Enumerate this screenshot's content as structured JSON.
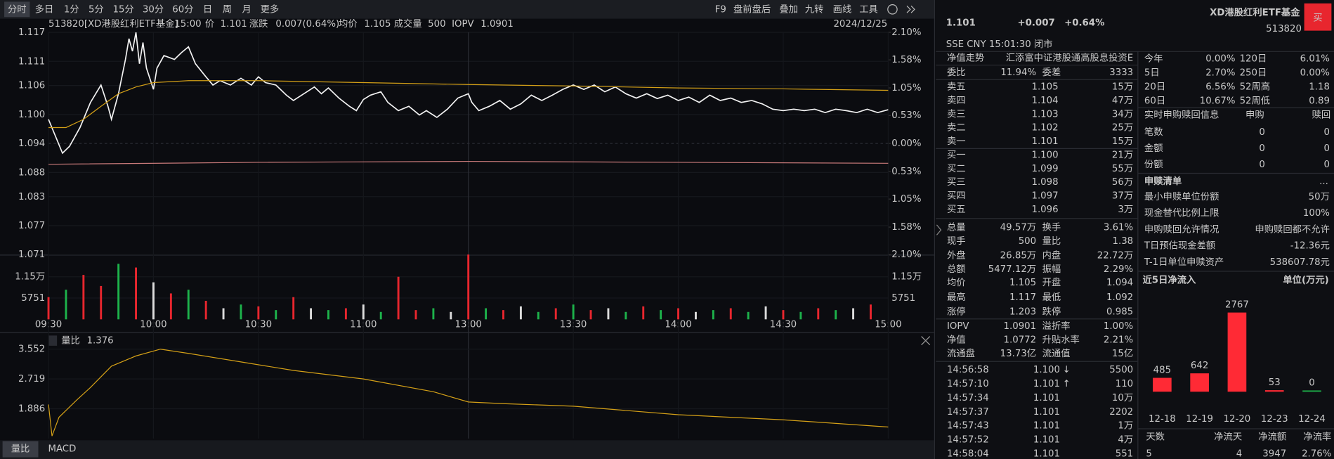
{
  "toolbar": {
    "periods": [
      "分时",
      "多日",
      "1分",
      "5分",
      "15分",
      "30分",
      "60分",
      "日",
      "周",
      "月",
      "更多"
    ],
    "tools": [
      "F9",
      "盘前盘后",
      "叠加",
      "九转",
      "画线",
      "工具"
    ]
  },
  "intraday": {
    "type": "line",
    "info": {
      "code_name": "513820[XD港股红利ETF基金]",
      "time": "15:00",
      "price_label": "价",
      "price": "1.101",
      "change_label": "涨跌",
      "change": "0.007(0.64%)",
      "avg_label": "均价",
      "avg": "1.105",
      "volume_label": "成交量",
      "volume": "500",
      "iopv_label": "IOPV",
      "iopv": "1.0901",
      "date": "2024/12/25"
    },
    "xlim": [
      0,
      240
    ],
    "xticks": [
      {
        "value": 0,
        "label": "09:30"
      },
      {
        "value": 30,
        "label": "10:00"
      },
      {
        "value": 60,
        "label": "10:30"
      },
      {
        "value": 90,
        "label": "11:00"
      },
      {
        "value": 120,
        "label": "13:00"
      },
      {
        "value": 150,
        "label": "13:30"
      },
      {
        "value": 180,
        "label": "14:00"
      },
      {
        "value": 210,
        "label": "14:30"
      },
      {
        "value": 240,
        "label": "15:00"
      }
    ],
    "ylim": [
      1.071,
      1.117
    ],
    "yticks": [
      1.117,
      1.111,
      1.106,
      {
        "value": 1.1,
        "label": "1.100"
      },
      1.094,
      1.088,
      1.083,
      1.077,
      1.071
    ],
    "y2lim": [
      -2.1,
      2.1
    ],
    "y2ticks": [
      {
        "value": 2.1,
        "label": "2.10%"
      },
      {
        "value": 1.58,
        "label": "1.58%"
      },
      {
        "value": 1.05,
        "label": "1.05%"
      },
      {
        "value": 0.53,
        "label": "0.53%"
      },
      {
        "value": 0,
        "label": "0.00%"
      },
      {
        "value": -0.53,
        "label": "0.53%"
      },
      {
        "value": -1.05,
        "label": "1.05%"
      },
      {
        "value": -1.58,
        "label": "1.58%"
      },
      {
        "value": -2.1,
        "label": "2.10%"
      }
    ],
    "grid": true,
    "series": [
      {
        "color": "#f2f2f2",
        "x": [
          0,
          2,
          4,
          6,
          9,
          12,
          15,
          17,
          18,
          20,
          22,
          23,
          24,
          25,
          26,
          27,
          28,
          30,
          31,
          33,
          36,
          38,
          40,
          42,
          45,
          47,
          49,
          52,
          55,
          58,
          60,
          62,
          65,
          68,
          70,
          73,
          76,
          78,
          80,
          83,
          86,
          88,
          90,
          92,
          95,
          97,
          100,
          103,
          106,
          108,
          111,
          114,
          117,
          120,
          121,
          123,
          126,
          129,
          132,
          135,
          138,
          141,
          144,
          147,
          150,
          153,
          156,
          159,
          162,
          165,
          168,
          171,
          174,
          177,
          180,
          183,
          186,
          189,
          192,
          195,
          198,
          201,
          204,
          207,
          210,
          213,
          216,
          219,
          222,
          225,
          228,
          231,
          234,
          237,
          240
        ],
        "values": [
          1.099,
          1.0955,
          1.092,
          1.0934,
          1.0973,
          1.1025,
          1.1061,
          1.1017,
          1.099,
          1.1043,
          1.1114,
          1.1157,
          1.1131,
          1.117,
          1.1105,
          1.1149,
          1.1096,
          1.1052,
          1.1096,
          1.1122,
          1.1114,
          1.1128,
          1.114,
          1.1105,
          1.1078,
          1.1061,
          1.107,
          1.1061,
          1.1075,
          1.1061,
          1.1078,
          1.1066,
          1.1061,
          1.104,
          1.1029,
          1.1043,
          1.1057,
          1.1043,
          1.1055,
          1.1034,
          1.1017,
          1.1008,
          1.1031,
          1.104,
          1.1047,
          1.1025,
          1.1008,
          1.1017,
          1.0999,
          1.1008,
          1.0994,
          1.1011,
          1.1034,
          1.1043,
          1.1025,
          1.1008,
          1.1017,
          1.1029,
          1.1011,
          1.1022,
          1.104,
          1.1029,
          1.104,
          1.1052,
          1.1061,
          1.1052,
          1.1061,
          1.1047,
          1.1057,
          1.1043,
          1.1034,
          1.1043,
          1.1033,
          1.104,
          1.1029,
          1.1036,
          1.1025,
          1.104,
          1.1029,
          1.1034,
          1.1025,
          1.1029,
          1.1022,
          1.1011,
          1.1008,
          1.1011,
          1.1008,
          1.1011,
          1.1004,
          1.1011,
          1.1008,
          1.1004,
          1.1011,
          1.1004,
          1.101
        ]
      },
      {
        "color": "#d4a017",
        "x": [
          0,
          5,
          10,
          15,
          20,
          25,
          30,
          40,
          60,
          90,
          120,
          150,
          180,
          210,
          240
        ],
        "values": [
          1.0973,
          1.0973,
          1.099,
          1.1017,
          1.1043,
          1.1057,
          1.1066,
          1.107,
          1.107,
          1.1066,
          1.1062,
          1.1059,
          1.1055,
          1.1053,
          1.105
        ]
      },
      {
        "color": "#c97a7a",
        "x": [
          0,
          60,
          120,
          180,
          240
        ],
        "values": [
          1.0897,
          1.0901,
          1.0903,
          1.0901,
          1.0899
        ]
      }
    ]
  },
  "volume": {
    "type": "bar",
    "ylim": [
      0,
      17250
    ],
    "yticks": [
      {
        "value": 11502,
        "label": "1.15万"
      },
      5751
    ],
    "x": [
      0,
      5,
      10,
      15,
      20,
      25,
      30,
      35,
      40,
      45,
      50,
      55,
      60,
      65,
      70,
      75,
      80,
      85,
      90,
      95,
      100,
      105,
      110,
      115,
      120,
      125,
      130,
      135,
      140,
      145,
      150,
      155,
      160,
      165,
      170,
      175,
      180,
      185,
      190,
      195,
      200,
      205,
      210,
      215,
      220,
      225,
      230,
      235
    ],
    "values": [
      6000,
      8000,
      12000,
      9000,
      15000,
      14000,
      10000,
      7000,
      8000,
      5000,
      3000,
      4000,
      3500,
      2500,
      6000,
      3000,
      2500,
      3000,
      4000,
      2000,
      11500,
      2500,
      3000,
      2000,
      17500,
      3000,
      2500,
      3500,
      2000,
      3000,
      4000,
      2500,
      3000,
      2000,
      3500,
      2500,
      3000,
      2000,
      2500,
      3000,
      2000,
      3500,
      2500,
      2000,
      3000,
      2500,
      3000,
      4000
    ],
    "colors": [
      "#e8262e",
      "#1db34b",
      "#e8262e",
      "#e8262e",
      "#1db34b",
      "#e8262e",
      "#dcdcdc",
      "#e8262e",
      "#1db34b",
      "#e8262e",
      "#dcdcdc",
      "#1db34b",
      "#e8262e",
      "#1db34b",
      "#e8262e",
      "#dcdcdc",
      "#1db34b",
      "#e8262e",
      "#dcdcdc",
      "#1db34b",
      "#e8262e",
      "#e8262e",
      "#1db34b",
      "#dcdcdc",
      "#e8262e",
      "#1db34b",
      "#e8262e",
      "#dcdcdc",
      "#1db34b",
      "#e8262e",
      "#1db34b",
      "#e8262e",
      "#dcdcdc",
      "#1db34b",
      "#e8262e",
      "#1db34b",
      "#e8262e",
      "#dcdcdc",
      "#1db34b",
      "#e8262e",
      "#1db34b",
      "#dcdcdc",
      "#e8262e",
      "#1db34b",
      "#e8262e",
      "#1db34b",
      "#dcdcdc",
      "#e8262e"
    ]
  },
  "indicator": {
    "type": "line",
    "label": "量比",
    "current": 1.376,
    "ylim": [
      1.053,
      3.671
    ],
    "yticks": [
      3.552,
      2.719,
      1.886
    ],
    "color": "#d4a017",
    "x": [
      0,
      1,
      3,
      8,
      12,
      18,
      25,
      32,
      40,
      55,
      70,
      90,
      110,
      120,
      130,
      150,
      180,
      210,
      240
    ],
    "values": [
      2.005,
      1.124,
      1.648,
      2.124,
      2.481,
      3.076,
      3.362,
      3.552,
      3.433,
      3.195,
      2.957,
      2.719,
      2.362,
      2.076,
      2.029,
      1.957,
      1.719,
      1.577,
      1.376
    ]
  },
  "bottom_tabs": [
    "量比",
    "MACD"
  ],
  "quote": {
    "price": "1.101",
    "change": "+0.007",
    "change_pct": "+0.64%",
    "name": "XD港股红利ETF基金",
    "code": "513820",
    "buy": "买",
    "meta": "SSE  CNY  15:01:30  闭市"
  },
  "tabs": [
    "净值走势",
    "汇添富中证港股通高股息投资E"
  ],
  "order_book": {
    "ratio_label": "委比",
    "ratio": "11.94%",
    "diff_label": "委差",
    "diff": "3333",
    "asks": [
      [
        "卖五",
        "1.105",
        "15万"
      ],
      [
        "卖四",
        "1.104",
        "47万"
      ],
      [
        "卖三",
        "1.103",
        "34万"
      ],
      [
        "卖二",
        "1.102",
        "25万"
      ],
      [
        "卖一",
        "1.101",
        "15万"
      ]
    ],
    "bids": [
      [
        "买一",
        "1.100",
        "21万"
      ],
      [
        "买二",
        "1.099",
        "55万"
      ],
      [
        "买三",
        "1.098",
        "56万"
      ],
      [
        "买四",
        "1.097",
        "37万"
      ],
      [
        "买五",
        "1.096",
        "3万"
      ]
    ]
  },
  "stats": [
    [
      "总量",
      "49.57万",
      "换手",
      "3.61%"
    ],
    [
      "现手",
      "500",
      "量比",
      "1.38"
    ],
    [
      "外盘",
      "26.85万",
      "内盘",
      "22.72万"
    ],
    [
      "总额",
      "5477.12万",
      "振幅",
      "2.29%"
    ],
    [
      "均价",
      "1.105",
      "开盘",
      "1.094"
    ],
    [
      "最高",
      "1.117",
      "最低",
      "1.092"
    ],
    [
      "涨停",
      "1.203",
      "跌停",
      "0.985"
    ],
    [
      "IOPV",
      "1.0901",
      "溢折率",
      "1.00%"
    ],
    [
      "净值",
      "1.0772",
      "升贴水率",
      "2.21%"
    ],
    [
      "流通盘",
      "13.73亿",
      "流通值",
      "15亿"
    ]
  ],
  "trades": [
    {
      "time": "14:56:58",
      "price": "1.100",
      "arrow": "↓",
      "volume": "5500"
    },
    {
      "time": "14:57:10",
      "price": "1.101",
      "arrow": "↑",
      "volume": "110"
    },
    {
      "time": "14:57:34",
      "price": "1.101",
      "volume": "10万"
    },
    {
      "time": "14:57:37",
      "price": "1.101",
      "volume": "2202"
    },
    {
      "time": "14:57:43",
      "price": "1.101",
      "volume": "1万"
    },
    {
      "time": "14:57:52",
      "price": "1.101",
      "volume": "4万"
    },
    {
      "time": "14:58:04",
      "price": "1.101",
      "volume": "551"
    }
  ],
  "performance": [
    [
      "今年",
      "0.00%",
      "120日",
      "6.01%"
    ],
    [
      "5日",
      "2.70%",
      "250日",
      "0.00%"
    ],
    [
      "20日",
      "6.56%",
      "52周高",
      "1.18"
    ],
    [
      "60日",
      "10.67%",
      "52周低",
      "0.89"
    ]
  ],
  "creation": {
    "title": "实时申购赎回信息",
    "columns": [
      "申购",
      "赎回"
    ],
    "rows": [
      [
        "笔数",
        "0",
        "0"
      ],
      [
        "金额",
        "0",
        "0"
      ],
      [
        "份额",
        "0",
        "0"
      ]
    ]
  },
  "basket": {
    "title": "申赎清单",
    "more": "...",
    "rows": [
      [
        "最小申赎单位份额",
        "50万"
      ],
      [
        "现金替代比例上限",
        "100%"
      ],
      [
        "申购赎回允许情况",
        "申购赎回都不允许"
      ],
      [
        "T日预估现金差额",
        "-12.36元"
      ],
      [
        "T-1日单位申赎资产",
        "538607.78元"
      ]
    ]
  },
  "net_inflow": {
    "type": "bar",
    "title": "近5日净流入",
    "unit": "单位(万元)",
    "categories": [
      "12-18",
      "12-19",
      "12-20",
      "12-23",
      "12-24"
    ],
    "values": [
      485,
      642,
      2767,
      53,
      0
    ],
    "colors": [
      "#ff2a35",
      "#ff2a35",
      "#ff2a35",
      "#ff2a35",
      "#1db34b"
    ]
  },
  "summary": {
    "headers": [
      "天数",
      "净流天",
      "净流额",
      "净流率"
    ],
    "values": [
      "5",
      "4",
      "3947",
      "2.76%"
    ]
  }
}
